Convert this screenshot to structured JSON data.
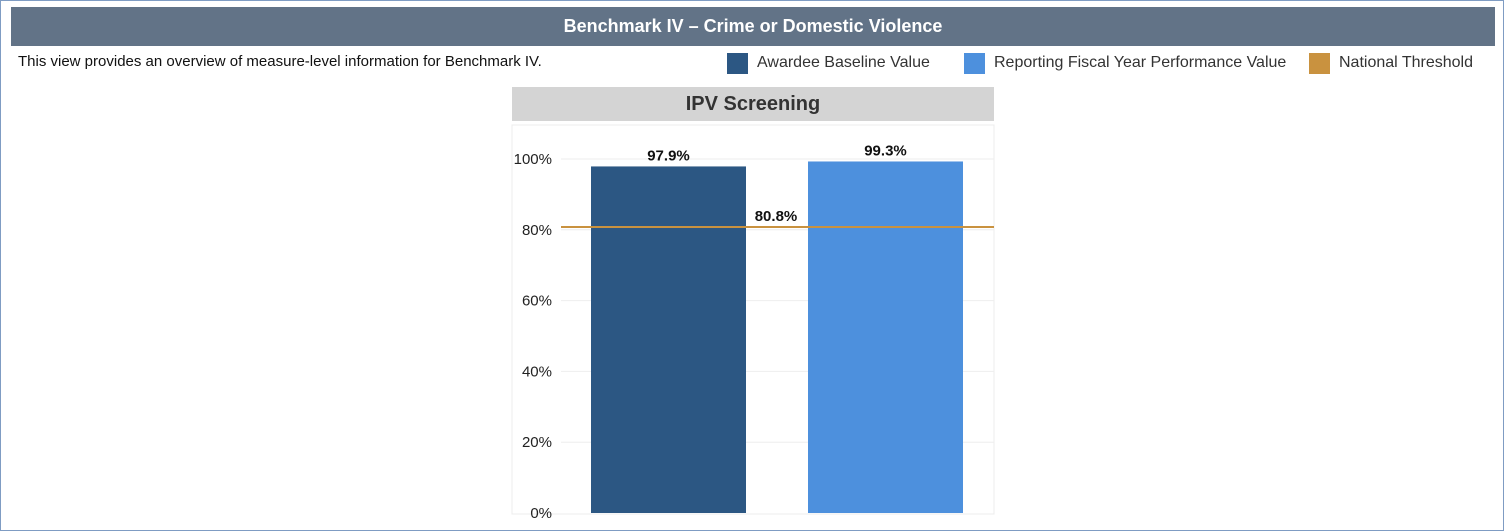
{
  "header": {
    "title": "Benchmark IV – Crime or Domestic Violence"
  },
  "description": "This view provides an overview of measure-level information for Benchmark IV.",
  "legend": [
    {
      "label": "Awardee Baseline Value",
      "color": "#2c5783"
    },
    {
      "label": "Reporting Fiscal Year Performance Value",
      "color": "#4d90dd"
    },
    {
      "label": "National Threshold",
      "color": "#c9923f"
    }
  ],
  "chart_data": {
    "type": "bar",
    "title": "IPV Screening",
    "categories": [
      "Awardee Baseline Value",
      "Reporting Fiscal Year Performance Value"
    ],
    "values": [
      97.9,
      99.3
    ],
    "value_labels": [
      "97.9%",
      "99.3%"
    ],
    "colors": [
      "#2c5783",
      "#4d90dd"
    ],
    "threshold": {
      "value": 80.8,
      "label": "80.8%",
      "color": "#c9923f"
    },
    "ylim": [
      0,
      100
    ],
    "yticks": [
      0,
      20,
      40,
      60,
      80,
      100
    ],
    "ytick_labels": [
      "0%",
      "20%",
      "40%",
      "60%",
      "80%",
      "100%"
    ],
    "grid": true
  }
}
